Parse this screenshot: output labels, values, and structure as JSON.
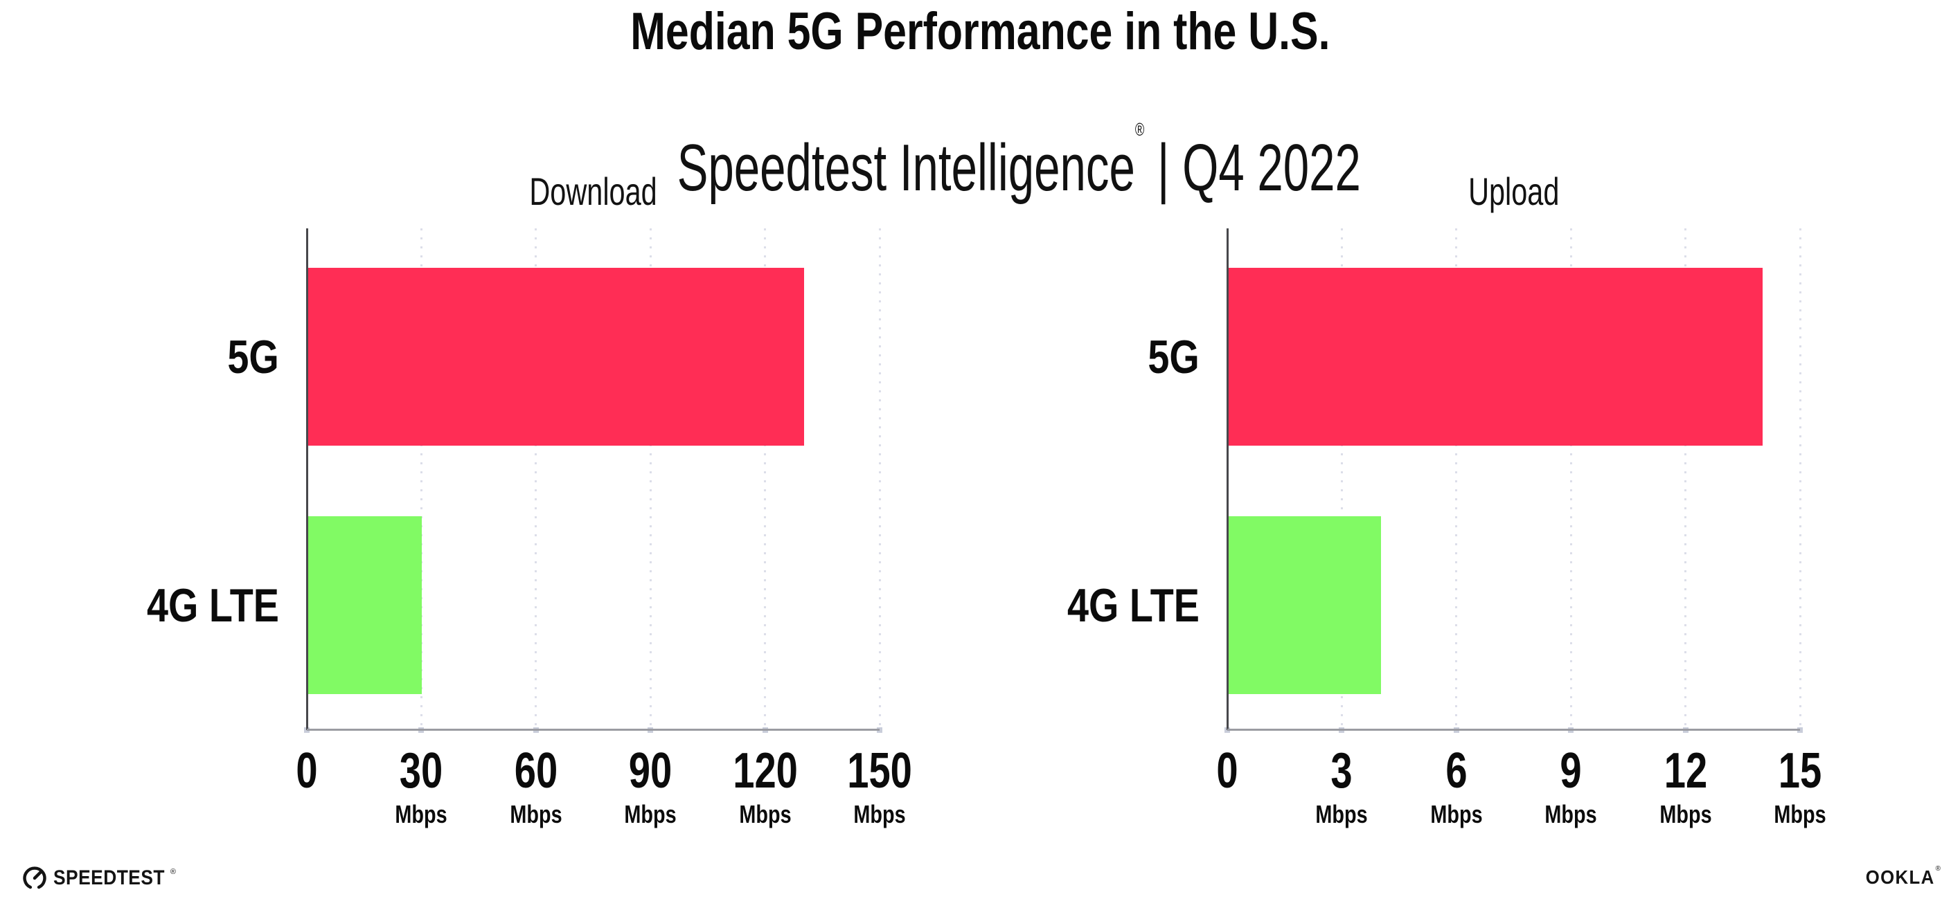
{
  "header": {
    "title": "Median 5G Performance in the U.S.",
    "subtitle_brand": "Speedtest Intelligence",
    "subtitle_reg": "®",
    "subtitle_rest": " | Q4 2022"
  },
  "chart_data": [
    {
      "type": "bar",
      "orientation": "horizontal",
      "title": "Download",
      "categories": [
        "5G",
        "4G LTE"
      ],
      "values": [
        130,
        30
      ],
      "value_unit": "Mbps",
      "xticks": [
        0,
        30,
        60,
        90,
        120,
        150
      ],
      "tick_unit_label": "Mbps",
      "xlim": [
        0,
        150
      ],
      "bar_colors": [
        "#FF2D55",
        "#81FA64"
      ],
      "grid": "vertical-dotted",
      "legend": "none",
      "xlabel": "",
      "ylabel": ""
    },
    {
      "type": "bar",
      "orientation": "horizontal",
      "title": "Upload",
      "categories": [
        "5G",
        "4G LTE"
      ],
      "values": [
        14,
        4
      ],
      "value_unit": "Mbps",
      "xticks": [
        0,
        3,
        6,
        9,
        12,
        15
      ],
      "tick_unit_label": "Mbps",
      "xlim": [
        0,
        15
      ],
      "bar_colors": [
        "#FF2D55",
        "#81FA64"
      ],
      "grid": "vertical-dotted",
      "legend": "none",
      "xlabel": "",
      "ylabel": ""
    }
  ],
  "colors": {
    "bar_5g": "#FF2D55",
    "bar_4g_lte": "#81FA64",
    "gridline": "#DCDEE9",
    "axis_line": "#9B9CA2",
    "spine": "#47474B",
    "text": "#0B0B0B"
  },
  "footer": {
    "speedtest_logo_text": "SPEEDTEST",
    "speedtest_reg": "®",
    "ookla_logo_text": "OOKLA",
    "ookla_reg": "®"
  }
}
